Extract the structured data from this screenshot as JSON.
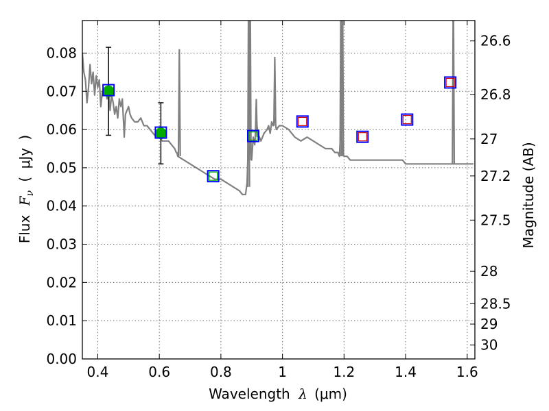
{
  "chart_data": {
    "type": "line",
    "title": "",
    "xlabel_text": "Wavelength",
    "xlabel_symbol": "λ",
    "xlabel_unit": "(μm)",
    "ylabel_text": "Flux",
    "ylabel_symbol": "F",
    "ylabel_subscript": "ν",
    "ylabel_unit_open": "(",
    "ylabel_unit": "μJy",
    "ylabel_unit_close": ")",
    "y2label": "Magnitude (AB)",
    "xlim": [
      0.35,
      1.625
    ],
    "ylim": [
      0.0,
      0.0885
    ],
    "x_ticks": [
      0.4,
      0.6,
      0.8,
      1.0,
      1.2,
      1.4,
      1.6
    ],
    "x_tick_labels": [
      "0.4",
      "0.6",
      "0.8",
      "1",
      "1.2",
      "1.4",
      "1.6"
    ],
    "y_ticks": [
      0.0,
      0.01,
      0.02,
      0.03,
      0.04,
      0.05,
      0.06,
      0.07,
      0.08
    ],
    "y_tick_labels": [
      "0.00",
      "0.01",
      "0.02",
      "0.03",
      "0.04",
      "0.05",
      "0.06",
      "0.07",
      "0.08"
    ],
    "y2_ticks": [
      {
        "label": "26.6",
        "mag": 26.6
      },
      {
        "label": "26.8",
        "mag": 26.8
      },
      {
        "label": "27",
        "mag": 27.0
      },
      {
        "label": "27.2",
        "mag": 27.2
      },
      {
        "label": "27.5",
        "mag": 27.5
      },
      {
        "label": "28",
        "mag": 28.0
      },
      {
        "label": "28.5",
        "mag": 28.5
      },
      {
        "label": "29",
        "mag": 29.0
      },
      {
        "label": "30",
        "mag": 30.0
      }
    ],
    "grid": true,
    "series": [
      {
        "kind": "model_spectrum",
        "color": "#808080",
        "x": [
          0.35,
          0.355,
          0.36,
          0.365,
          0.37,
          0.375,
          0.38,
          0.385,
          0.39,
          0.395,
          0.4,
          0.405,
          0.41,
          0.415,
          0.42,
          0.425,
          0.43,
          0.435,
          0.44,
          0.445,
          0.45,
          0.455,
          0.46,
          0.465,
          0.47,
          0.475,
          0.48,
          0.485,
          0.486,
          0.49,
          0.5,
          0.505,
          0.51,
          0.52,
          0.53,
          0.54,
          0.55,
          0.56,
          0.57,
          0.58,
          0.59,
          0.6,
          0.61,
          0.62,
          0.63,
          0.64,
          0.65,
          0.655,
          0.656,
          0.657,
          0.66,
          0.68,
          0.7,
          0.72,
          0.74,
          0.76,
          0.78,
          0.8,
          0.82,
          0.84,
          0.86,
          0.87,
          0.88,
          0.885,
          0.89,
          0.893,
          0.895,
          0.9,
          0.905,
          0.91,
          0.915,
          0.92,
          0.925,
          0.93,
          0.94,
          0.95,
          0.955,
          0.96,
          0.965,
          0.97,
          0.975,
          0.98,
          0.99,
          1.0,
          1.02,
          1.04,
          1.06,
          1.08,
          1.1,
          1.12,
          1.14,
          1.16,
          1.17,
          1.18,
          1.185,
          1.19,
          1.195,
          1.2,
          1.21,
          1.22,
          1.24,
          1.26,
          1.28,
          1.3,
          1.32,
          1.34,
          1.36,
          1.38,
          1.39,
          1.4,
          1.41,
          1.42,
          1.44,
          1.46,
          1.48,
          1.5,
          1.505,
          1.51,
          1.52,
          1.53,
          1.535,
          1.54,
          1.545,
          1.55,
          1.6,
          1.62
        ],
        "y": [
          0.08,
          0.075,
          0.073,
          0.067,
          0.071,
          0.077,
          0.072,
          0.075,
          0.069,
          0.074,
          0.071,
          0.073,
          0.066,
          0.07,
          0.069,
          0.071,
          0.068,
          0.07,
          0.065,
          0.069,
          0.067,
          0.064,
          0.066,
          0.063,
          0.068,
          0.066,
          0.068,
          0.06,
          0.058,
          0.064,
          0.066,
          0.064,
          0.063,
          0.062,
          0.062,
          0.063,
          0.061,
          0.061,
          0.06,
          0.059,
          0.058,
          0.058,
          0.057,
          0.057,
          0.057,
          0.056,
          0.055,
          0.054,
          0.054,
          0.054,
          0.053,
          0.052,
          0.051,
          0.05,
          0.049,
          0.048,
          0.047,
          0.047,
          0.046,
          0.045,
          0.044,
          0.043,
          0.043,
          0.046,
          0.058,
          0.065,
          0.056,
          0.052,
          0.058,
          0.056,
          0.063,
          0.059,
          0.058,
          0.057,
          0.059,
          0.06,
          0.061,
          0.059,
          0.062,
          0.061,
          0.063,
          0.06,
          0.061,
          0.061,
          0.06,
          0.058,
          0.057,
          0.058,
          0.057,
          0.056,
          0.055,
          0.055,
          0.054,
          0.054,
          0.053,
          0.061,
          0.054,
          0.053,
          0.053,
          0.052,
          0.052,
          0.052,
          0.052,
          0.052,
          0.052,
          0.052,
          0.052,
          0.052,
          0.052,
          0.051,
          0.051,
          0.051,
          0.051,
          0.051,
          0.051,
          0.051,
          0.051,
          0.051,
          0.051,
          0.051,
          0.051,
          0.051,
          0.051,
          0.051,
          0.051,
          0.051
        ]
      },
      {
        "kind": "photometry_points",
        "color": "#00aa00",
        "x": [
          0.435,
          0.605
        ],
        "y": [
          0.07,
          0.059
        ],
        "yerr": [
          0.0115,
          0.008
        ]
      },
      {
        "kind": "model_photometry_boxes",
        "color": "#0000ff",
        "x": [
          0.435,
          0.605,
          0.775,
          0.905,
          1.065,
          1.26,
          1.405,
          1.545
        ],
        "y": [
          0.0703,
          0.0592,
          0.0478,
          0.0583,
          0.0621,
          0.0581,
          0.0626,
          0.0723
        ]
      },
      {
        "kind": "observed_photometry_boxes",
        "color": "#cc0000",
        "x": [
          1.065,
          1.26,
          1.405,
          1.545
        ],
        "y": [
          0.0621,
          0.0581,
          0.0626,
          0.0723
        ]
      },
      {
        "kind": "observed_photometry_boxes",
        "color": "#00aa00",
        "x": [
          0.775,
          0.905
        ],
        "y": [
          0.0478,
          0.0583
        ]
      }
    ]
  }
}
